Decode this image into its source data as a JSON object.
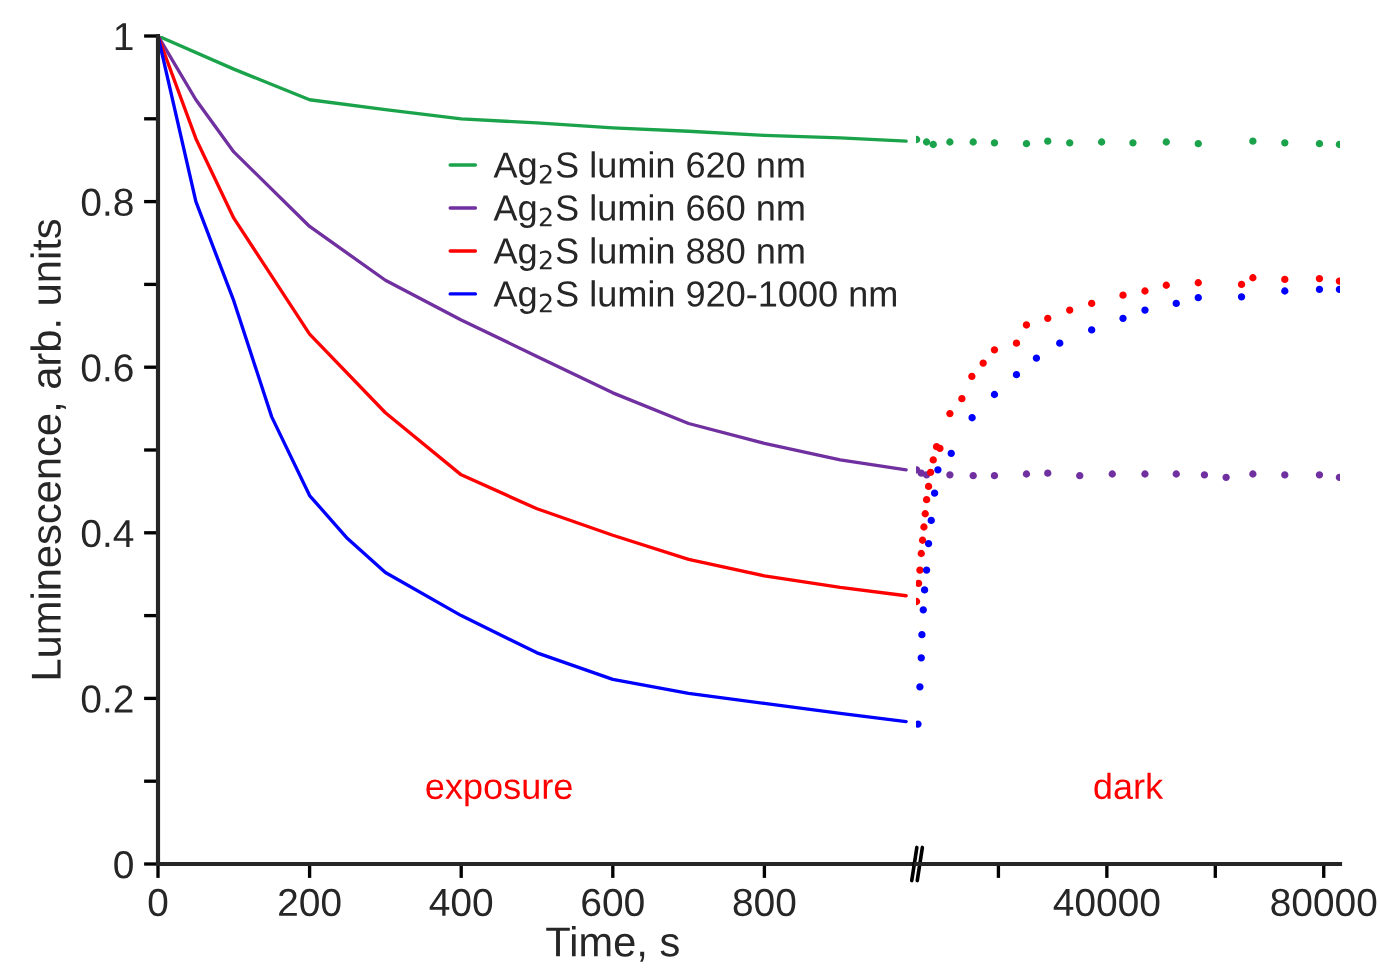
{
  "chart_data": [
    {
      "type": "line",
      "xlabel": "Time, s",
      "ylabel": "Luminescence, arb. units",
      "xlim": [
        0,
        1000
      ],
      "xticks": [
        0,
        200,
        400,
        600,
        800
      ],
      "ylim": [
        0,
        1
      ],
      "yticks": [
        0,
        {
          "value": 0.1,
          "label": null
        },
        {
          "value": 0.2,
          "label": "0.2"
        },
        {
          "value": 0.3,
          "label": null
        },
        {
          "value": 0.4,
          "label": "0.4"
        },
        {
          "value": 0.5,
          "label": null
        },
        {
          "value": 0.6,
          "label": "0.6"
        },
        {
          "value": 0.7,
          "label": null
        },
        {
          "value": 0.8,
          "label": "0.8"
        },
        {
          "value": 0.9,
          "label": null
        },
        1
      ],
      "legend": "top right",
      "line_style": "solid",
      "grid": false,
      "annotations": [
        "exposure"
      ],
      "series": [
        {
          "name": "Ag$_{2}$S lumin 620 nm",
          "color": "#1aa34a",
          "x": [
            0,
            100,
            200,
            300,
            400,
            500,
            600,
            700,
            800,
            900,
            987
          ],
          "values": [
            1,
            0.96,
            0.923,
            0.911,
            0.9,
            0.895,
            0.889,
            0.885,
            0.88,
            0.877,
            0.873
          ]
        },
        {
          "name": "Ag$_{2}$S lumin 660 nm",
          "color": "#7030a0",
          "x": [
            0,
            50,
            100,
            200,
            300,
            400,
            500,
            600,
            700,
            800,
            900,
            987
          ],
          "values": [
            1,
            0.923,
            0.86,
            0.77,
            0.705,
            0.657,
            0.613,
            0.569,
            0.532,
            0.508,
            0.488,
            0.476
          ]
        },
        {
          "name": "Ag$_{2}$S lumin 880 nm",
          "color": "#ff0000",
          "x": [
            0,
            50,
            100,
            150,
            200,
            300,
            400,
            500,
            600,
            700,
            800,
            900,
            987
          ],
          "values": [
            1,
            0.876,
            0.78,
            0.71,
            0.64,
            0.545,
            0.47,
            0.429,
            0.397,
            0.368,
            0.348,
            0.334,
            0.324
          ]
        },
        {
          "name": "Ag$_{2}$S lumin 920-1000 nm",
          "color": "#0000ff",
          "x": [
            0,
            50,
            100,
            150,
            200,
            250,
            300,
            400,
            500,
            600,
            700,
            800,
            900,
            987
          ],
          "values": [
            1,
            0.8,
            0.68,
            0.54,
            0.445,
            0.393,
            0.352,
            0.3,
            0.255,
            0.223,
            0.206,
            0.194,
            0.182,
            0.172
          ]
        }
      ]
    },
    {
      "type": "scatter",
      "marker": "circle",
      "tick_labels": "x",
      "xlim": [
        4800,
        83000
      ],
      "xticks": [
        {
          "value": 20000,
          "label": null
        },
        40000,
        {
          "value": 60000,
          "label": null
        },
        80000
      ],
      "ylim": [
        0,
        1
      ],
      "annotations": [
        "dark"
      ],
      "series": [
        {
          "color": "#1aa34a",
          "x": [
            4910,
            6750,
            7980,
            11050,
            15350,
            19270,
            25170,
            29100,
            33150,
            39040,
            44810,
            50960,
            56860,
            66930,
            72820,
            79210,
            82890
          ],
          "values": [
            0.875,
            0.872,
            0.869,
            0.872,
            0.872,
            0.871,
            0.87,
            0.873,
            0.871,
            0.872,
            0.871,
            0.872,
            0.87,
            0.873,
            0.871,
            0.87,
            0.869
          ]
        },
        {
          "color": "#7030a0",
          "x": [
            4910,
            5770,
            6750,
            7980,
            11050,
            15350,
            19270,
            25170,
            29100,
            35000,
            41000,
            47030,
            52800,
            58000,
            62000,
            66930,
            72820,
            79210,
            82890
          ],
          "values": [
            0.476,
            0.472,
            0.47,
            null,
            0.47,
            0.469,
            0.469,
            0.471,
            0.472,
            0.469,
            0.471,
            0.471,
            0.471,
            0.47,
            0.467,
            0.471,
            0.47,
            0.47,
            0.467
          ]
        },
        {
          "color": "#ff0000",
          "x": [
            4900,
            5280,
            5520,
            5770,
            6010,
            6260,
            6500,
            6750,
            7120,
            7490,
            7980,
            8590,
            9210,
            11050,
            13260,
            15100,
            17190,
            19270,
            23330,
            25170,
            29100,
            33150,
            37200,
            42980,
            47030,
            50960,
            56860,
            64840,
            66930,
            72820,
            79210,
            82890
          ],
          "values": [
            0.317,
            0.339,
            0.355,
            0.375,
            0.391,
            0.407,
            0.423,
            0.44,
            0.456,
            0.473,
            0.488,
            0.504,
            0.502,
            0.544,
            0.562,
            0.589,
            0.605,
            0.621,
            0.629,
            0.651,
            0.659,
            0.669,
            0.677,
            0.687,
            0.692,
            0.699,
            0.702,
            0.7,
            0.708,
            0.706,
            0.707,
            0.704
          ]
        },
        {
          "color": "#0000ff",
          "x": [
            5160,
            5520,
            5770,
            5890,
            6140,
            6380,
            6750,
            7120,
            7610,
            8230,
            8840,
            11300,
            15150,
            19270,
            23330,
            27010,
            31310,
            37200,
            42980,
            47030,
            52800,
            56860,
            64840,
            72820,
            79210,
            82890
          ],
          "values": [
            0.169,
            0.214,
            0.249,
            0.277,
            0.307,
            0.331,
            0.355,
            0.387,
            0.415,
            0.448,
            0.476,
            0.496,
            0.539,
            0.567,
            0.591,
            0.611,
            0.629,
            0.645,
            0.659,
            0.669,
            0.677,
            0.684,
            0.685,
            0.692,
            0.694,
            0.694
          ]
        }
      ]
    }
  ]
}
